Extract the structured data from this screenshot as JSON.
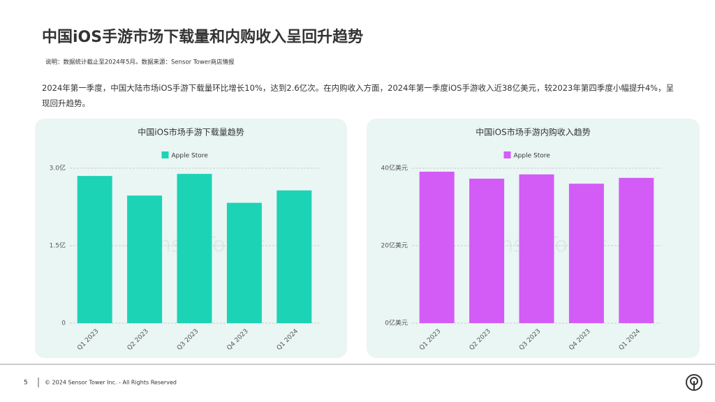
{
  "title": "中国iOS手游市场下载量和内购收入呈回升趋势",
  "note": "说明：数据统计截止至2024年5月。数据来源：Sensor Tower商店情报",
  "summary": "2024年第一季度，中国大陆市场iOS手游下载量环比增长10%，达到2.6亿次。在内购收入方面，2024年第一季度iOS手游收入近38亿美元，较2023年第四季度小幅提升4%，呈现回升趋势。",
  "watermark": "SensorTower",
  "footer": {
    "page": "5",
    "copyright": "© 2024 Sensor Tower Inc. - All Rights Reserved"
  },
  "chart_data": [
    {
      "type": "bar",
      "title": "中国iOS市场手游下载量趋势",
      "categories": [
        "Q1 2023",
        "Q2 2023",
        "Q3 2023",
        "Q4 2023",
        "Q1 2024"
      ],
      "series": [
        {
          "name": "Apple Store",
          "color": "#1dd3b5",
          "values": [
            2.85,
            2.47,
            2.89,
            2.33,
            2.57
          ]
        }
      ],
      "ylim": [
        0,
        3
      ],
      "yticks": [
        0,
        {
          "value": 1.5,
          "label": "1.5亿"
        },
        {
          "value": 3,
          "label": "3.0亿"
        }
      ],
      "grid": true
    },
    {
      "type": "bar",
      "title": "中国iOS市场手游内购收入趋势",
      "categories": [
        "Q1 2023",
        "Q2 2023",
        "Q3 2023",
        "Q4 2023",
        "Q1 2024"
      ],
      "series": [
        {
          "name": "Apple Store",
          "color": "#d35cf6",
          "values": [
            39.1,
            37.3,
            38.4,
            36.0,
            37.5
          ]
        }
      ],
      "ylim": [
        0,
        40
      ],
      "yticks": [
        {
          "value": 0,
          "label": "0亿美元"
        },
        {
          "value": 20,
          "label": "20亿美元"
        },
        {
          "value": 40,
          "label": "40亿美元"
        }
      ],
      "grid": true
    }
  ]
}
